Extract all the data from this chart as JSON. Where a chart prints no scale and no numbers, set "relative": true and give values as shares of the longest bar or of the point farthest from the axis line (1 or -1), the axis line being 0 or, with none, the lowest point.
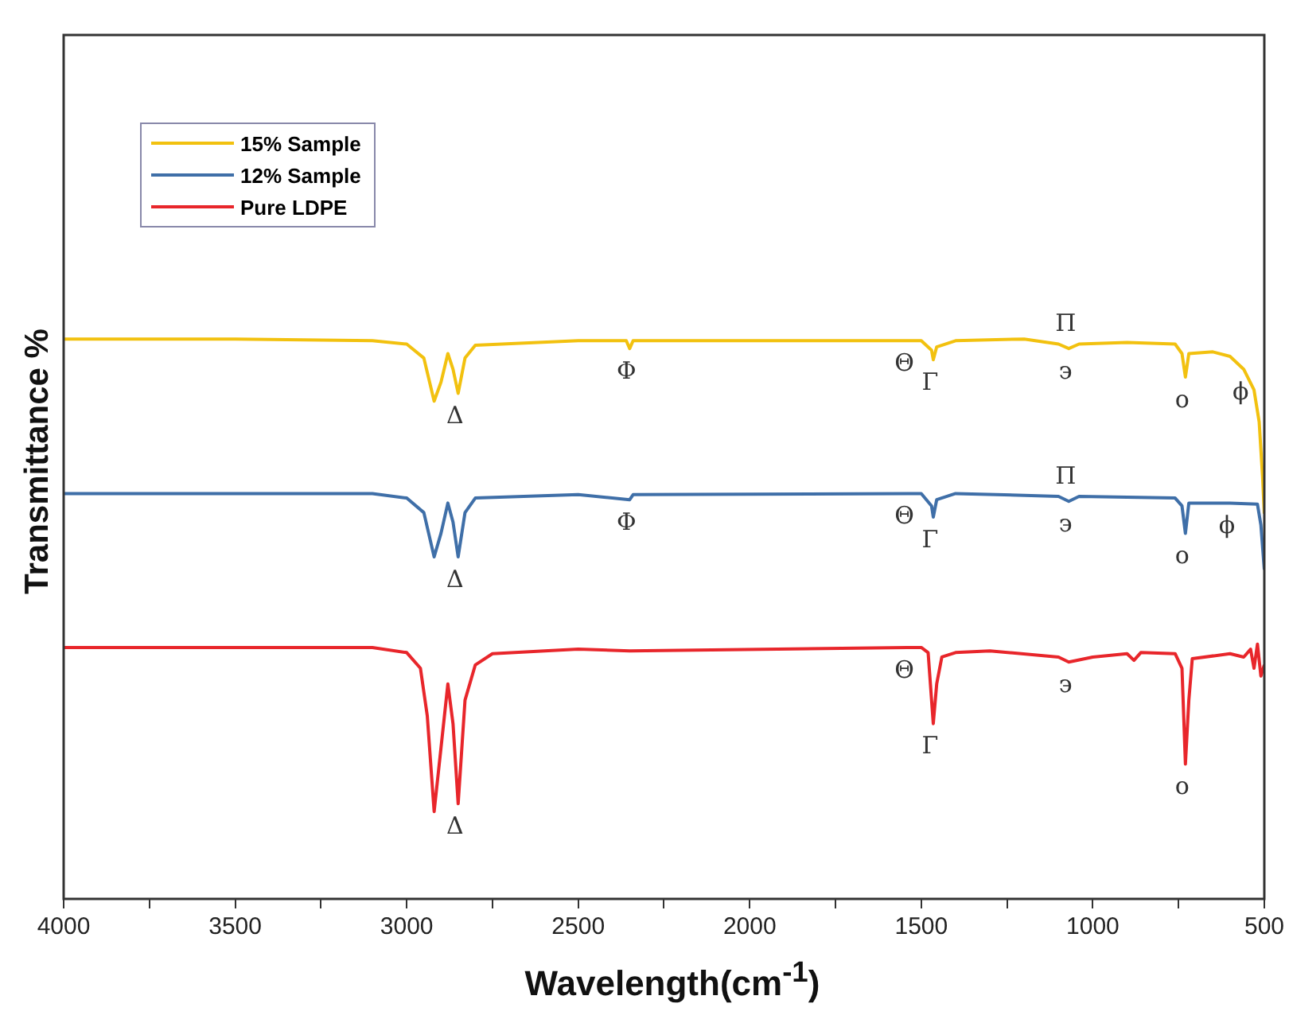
{
  "chart_data": {
    "type": "line",
    "xlabel": "Wavelength(cm$^{-1}$)",
    "ylabel": "Transmittance %",
    "relative": true,
    "legend": "top left",
    "grid": false,
    "marker": "none",
    "line_style": "solid",
    "xlim": [
      4000,
      500
    ],
    "xticks": [
      4000,
      {
        "value": 3750,
        "label": null
      },
      3500,
      {
        "value": 3250,
        "label": null
      },
      3000,
      {
        "value": 2750,
        "label": null
      },
      2500,
      {
        "value": 2250,
        "label": null
      },
      2000,
      {
        "value": 1750,
        "label": null
      },
      1500,
      {
        "value": 1250,
        "label": null
      },
      1000,
      {
        "value": 750,
        "label": null
      },
      500
    ],
    "series": [
      {
        "name": "15% Sample",
        "color": "#f2c10f",
        "x": [
          4000,
          3500,
          3100,
          3000,
          2950,
          2920,
          2900,
          2880,
          2865,
          2850,
          2830,
          2800,
          2500,
          2360,
          2350,
          2340,
          2000,
          1540,
          1500,
          1470,
          1465,
          1455,
          1400,
          1200,
          1100,
          1070,
          1040,
          900,
          760,
          740,
          730,
          720,
          650,
          600,
          560,
          530,
          515,
          505,
          500
        ],
        "values": [
          1.0,
          1.0,
          0.997,
          0.991,
          0.966,
          0.889,
          0.923,
          0.974,
          0.946,
          0.903,
          0.966,
          0.989,
          0.997,
          0.997,
          0.983,
          0.997,
          0.997,
          0.997,
          0.997,
          0.98,
          0.963,
          0.986,
          0.997,
          1.0,
          0.991,
          0.983,
          0.991,
          0.994,
          0.991,
          0.974,
          0.932,
          0.974,
          0.977,
          0.969,
          0.946,
          0.909,
          0.852,
          0.753,
          0.688
        ]
      },
      {
        "name": "12% Sample",
        "color": "#3f6fa8",
        "x": [
          4000,
          3100,
          3000,
          2950,
          2920,
          2900,
          2880,
          2865,
          2850,
          2830,
          2800,
          2500,
          2350,
          2340,
          1540,
          1500,
          1470,
          1465,
          1455,
          1400,
          1100,
          1070,
          1040,
          760,
          740,
          730,
          720,
          600,
          520,
          510,
          500
        ],
        "values": [
          0.724,
          0.724,
          0.716,
          0.69,
          0.611,
          0.653,
          0.707,
          0.673,
          0.611,
          0.69,
          0.716,
          0.722,
          0.713,
          0.722,
          0.724,
          0.724,
          0.702,
          0.682,
          0.713,
          0.724,
          0.719,
          0.71,
          0.719,
          0.716,
          0.702,
          0.653,
          0.707,
          0.707,
          0.705,
          0.668,
          0.588
        ]
      },
      {
        "name": "Pure LDPE",
        "color": "#e8262b",
        "x": [
          4000,
          3100,
          3000,
          2960,
          2940,
          2920,
          2900,
          2880,
          2865,
          2850,
          2830,
          2800,
          2750,
          2500,
          2350,
          1540,
          1500,
          1480,
          1465,
          1455,
          1440,
          1400,
          1300,
          1100,
          1070,
          1000,
          900,
          880,
          860,
          760,
          740,
          730,
          720,
          710,
          600,
          560,
          540,
          530,
          520,
          510,
          500
        ],
        "values": [
          0.449,
          0.449,
          0.44,
          0.412,
          0.327,
          0.156,
          0.27,
          0.384,
          0.313,
          0.17,
          0.355,
          0.418,
          0.438,
          0.446,
          0.443,
          0.449,
          0.449,
          0.44,
          0.313,
          0.384,
          0.432,
          0.44,
          0.443,
          0.432,
          0.423,
          0.432,
          0.438,
          0.426,
          0.44,
          0.438,
          0.412,
          0.241,
          0.355,
          0.429,
          0.438,
          0.432,
          0.446,
          0.412,
          0.455,
          0.398,
          0.418
        ]
      }
    ],
    "annotations": [
      {
        "text": "Δ",
        "x": 2850,
        "y": 0.903
      },
      {
        "text": "Φ",
        "x": 2350,
        "y": 0.983
      },
      {
        "text": "Θ",
        "x": 1540,
        "y": 0.997
      },
      {
        "text": "Γ",
        "x": 1465,
        "y": 0.963
      },
      {
        "text": "϶",
        "x": 1070,
        "y": 0.983
      },
      {
        "text": "Π",
        "x": 1070,
        "y": 0.983
      },
      {
        "text": "o",
        "x": 730,
        "y": 0.932
      },
      {
        "text": "ϕ",
        "x": 560,
        "y": 0.946
      },
      {
        "text": "Δ",
        "x": 2850,
        "y": 0.611
      },
      {
        "text": "Φ",
        "x": 2350,
        "y": 0.713
      },
      {
        "text": "Θ",
        "x": 1540,
        "y": 0.724
      },
      {
        "text": "Γ",
        "x": 1465,
        "y": 0.682
      },
      {
        "text": "϶",
        "x": 1070,
        "y": 0.71
      },
      {
        "text": "Π",
        "x": 1070,
        "y": 0.71
      },
      {
        "text": "o",
        "x": 730,
        "y": 0.653
      },
      {
        "text": "ϕ",
        "x": 600,
        "y": 0.707
      },
      {
        "text": "Δ",
        "x": 2850,
        "y": 0.17
      },
      {
        "text": "Θ",
        "x": 1540,
        "y": 0.449
      },
      {
        "text": "Γ",
        "x": 1465,
        "y": 0.313
      },
      {
        "text": "϶",
        "x": 1070,
        "y": 0.423
      },
      {
        "text": "o",
        "x": 730,
        "y": 0.241
      }
    ]
  }
}
